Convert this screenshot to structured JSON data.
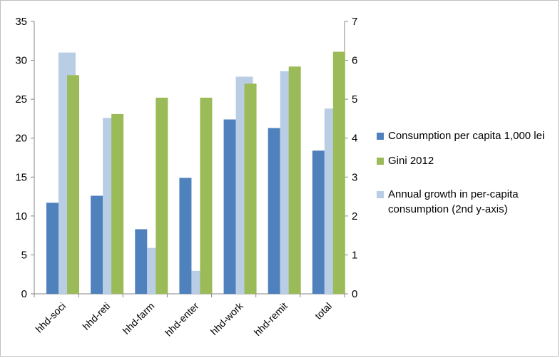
{
  "chart_data": {
    "type": "bar",
    "categories": [
      "hhd-soci",
      "hhd-reti",
      "hhd-farm",
      "hhd-enter",
      "hhd-work",
      "hhd-remit",
      "total"
    ],
    "series": [
      {
        "name": "Consumption per capita 1,000 lei",
        "axis": "left",
        "color": "#4f81bd",
        "values": [
          11.7,
          12.6,
          8.3,
          14.9,
          22.4,
          21.3,
          18.4
        ]
      },
      {
        "name": "Gini 2012",
        "axis": "left",
        "color": "#9bbb59",
        "values": [
          28.1,
          23.1,
          25.2,
          25.2,
          27.0,
          29.2,
          31.1
        ]
      },
      {
        "name": "Annual growth in per-capita consumption (2nd y-axis)",
        "axis": "right",
        "color": "#b9cde5",
        "values": [
          6.2,
          4.52,
          1.18,
          0.59,
          5.58,
          5.72,
          4.76
        ]
      }
    ],
    "ylim": [
      0,
      35
    ],
    "y2lim": [
      0,
      7
    ],
    "yticks": [
      0,
      5,
      10,
      15,
      20,
      25,
      30,
      35
    ],
    "y2ticks": [
      0,
      1,
      2,
      3,
      4,
      5,
      6,
      7
    ],
    "legend_position": "right",
    "grid": false
  }
}
